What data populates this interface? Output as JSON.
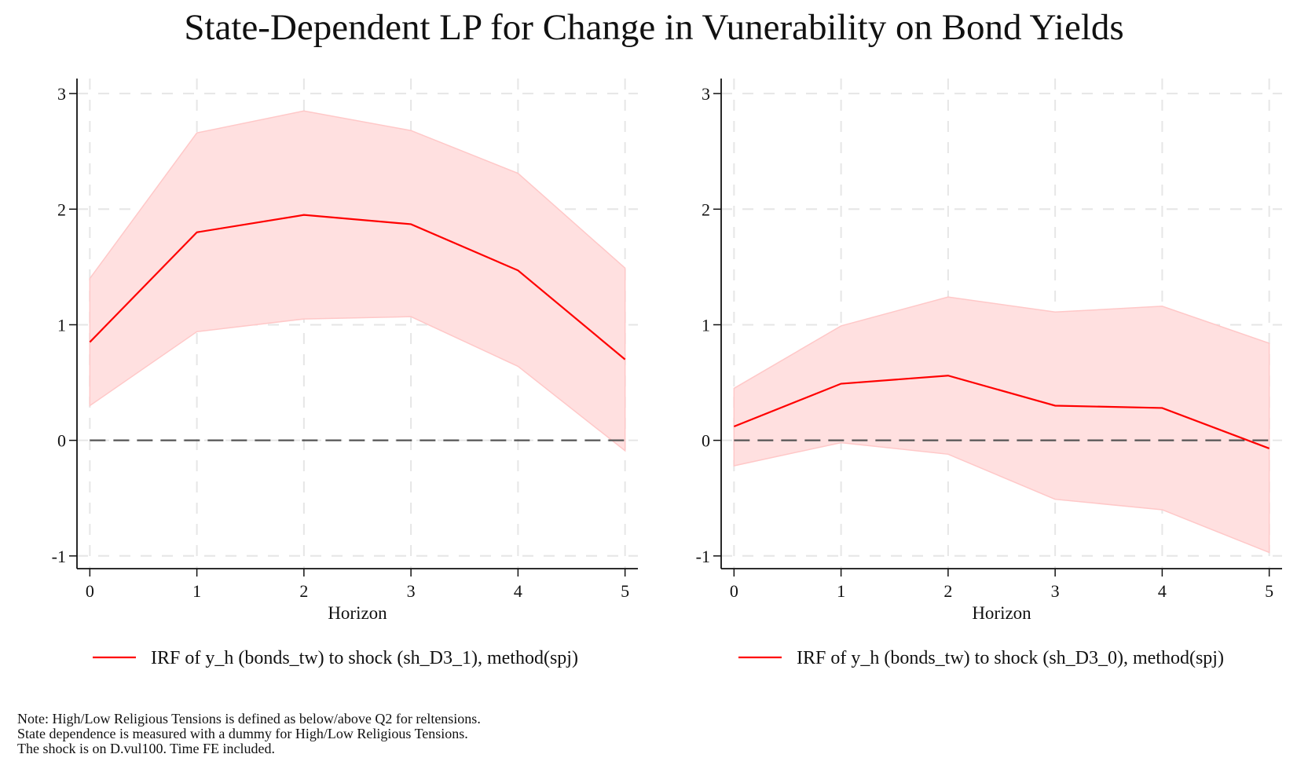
{
  "title": "State-Dependent LP for Change in Vunerability on Bond Yields",
  "colors": {
    "irf_line": "#ff0000",
    "band_fill": "#ffe0e0",
    "band_edge": "#ffc8c8",
    "zero_line": "#555555",
    "grid": "#e6e6e6",
    "axis": "#111111"
  },
  "note": [
    "Note: High/Low Religious Tensions is defined as below/above Q2 for reltensions.",
    "State dependence is measured with a dummy for High/Low Religious Tensions.",
    "The shock is on D.vul100. Time FE included."
  ],
  "chart_data": [
    {
      "type": "line",
      "title": "",
      "xlabel": "Horizon",
      "ylabel": "",
      "x": [
        0,
        1,
        2,
        3,
        4,
        5
      ],
      "xticks": [
        "0",
        "1",
        "2",
        "3",
        "4",
        "5"
      ],
      "yticks": [
        "-1",
        "0",
        "1",
        "2",
        "3"
      ],
      "ytick_values": [
        -1,
        0,
        1,
        2,
        3
      ],
      "xlim": [
        -0.12,
        5.12
      ],
      "ylim": [
        -1.11,
        3.13
      ],
      "grid": true,
      "reference_line": 0,
      "legend": "bottom",
      "series": [
        {
          "name": "IRF of y_h (bonds_tw) to shock (sh_D3_1), method(spj)",
          "values": [
            0.85,
            1.8,
            1.95,
            1.87,
            1.47,
            0.7
          ],
          "upper": [
            1.4,
            2.66,
            2.85,
            2.68,
            2.31,
            1.49
          ],
          "lower": [
            0.3,
            0.94,
            1.05,
            1.07,
            0.64,
            -0.09
          ]
        }
      ]
    },
    {
      "type": "line",
      "title": "",
      "xlabel": "Horizon",
      "ylabel": "",
      "x": [
        0,
        1,
        2,
        3,
        4,
        5
      ],
      "xticks": [
        "0",
        "1",
        "2",
        "3",
        "4",
        "5"
      ],
      "yticks": [
        "-1",
        "0",
        "1",
        "2",
        "3"
      ],
      "ytick_values": [
        -1,
        0,
        1,
        2,
        3
      ],
      "xlim": [
        -0.12,
        5.12
      ],
      "ylim": [
        -1.11,
        3.13
      ],
      "grid": true,
      "reference_line": 0,
      "legend": "bottom",
      "series": [
        {
          "name": "IRF of y_h (bonds_tw) to shock (sh_D3_0), method(spj)",
          "values": [
            0.12,
            0.49,
            0.56,
            0.3,
            0.28,
            -0.07
          ],
          "upper": [
            0.45,
            0.99,
            1.24,
            1.11,
            1.16,
            0.84
          ],
          "lower": [
            -0.22,
            -0.02,
            -0.12,
            -0.51,
            -0.6,
            -0.97
          ]
        }
      ]
    }
  ]
}
